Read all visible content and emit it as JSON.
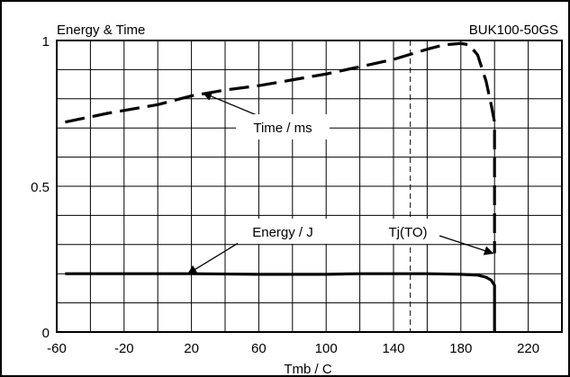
{
  "chart_data": {
    "type": "line",
    "title": "Energy & Time",
    "subtitle": "BUK100-50GS",
    "xlabel": "Tmb / C",
    "ylabel": "",
    "xlim": [
      -60,
      240
    ],
    "ylim": [
      0,
      1
    ],
    "x_tick_labels": [
      "-60",
      "-20",
      "20",
      "60",
      "100",
      "140",
      "180",
      "220"
    ],
    "y_tick_labels": [
      "0",
      "0.5",
      "1"
    ],
    "grid": true,
    "reference_line_x": 150,
    "series": [
      {
        "name": "Time / ms",
        "style": "dashed",
        "x": [
          -55,
          -30,
          0,
          20,
          40,
          60,
          80,
          100,
          120,
          140,
          160,
          170,
          180,
          185,
          190,
          195,
          198,
          200,
          200
        ],
        "y": [
          0.72,
          0.75,
          0.78,
          0.81,
          0.83,
          0.845,
          0.865,
          0.885,
          0.91,
          0.935,
          0.97,
          0.985,
          0.99,
          0.985,
          0.95,
          0.86,
          0.78,
          0.72,
          0.27
        ]
      },
      {
        "name": "Energy / J",
        "style": "solid",
        "x": [
          -55,
          -20,
          20,
          60,
          100,
          120,
          140,
          160,
          180,
          190,
          195,
          198,
          200,
          200
        ],
        "y": [
          0.2,
          0.2,
          0.2,
          0.198,
          0.198,
          0.2,
          0.2,
          0.2,
          0.198,
          0.195,
          0.188,
          0.178,
          0.16,
          0
        ]
      }
    ],
    "annotations": [
      {
        "text": "Time / ms",
        "target_x": 27,
        "target_y": 0.82
      },
      {
        "text": "Energy / J",
        "target_x": 18,
        "target_y": 0.2
      },
      {
        "text": "Tj(TO)",
        "target_x": 199,
        "target_y": 0.27
      }
    ]
  }
}
